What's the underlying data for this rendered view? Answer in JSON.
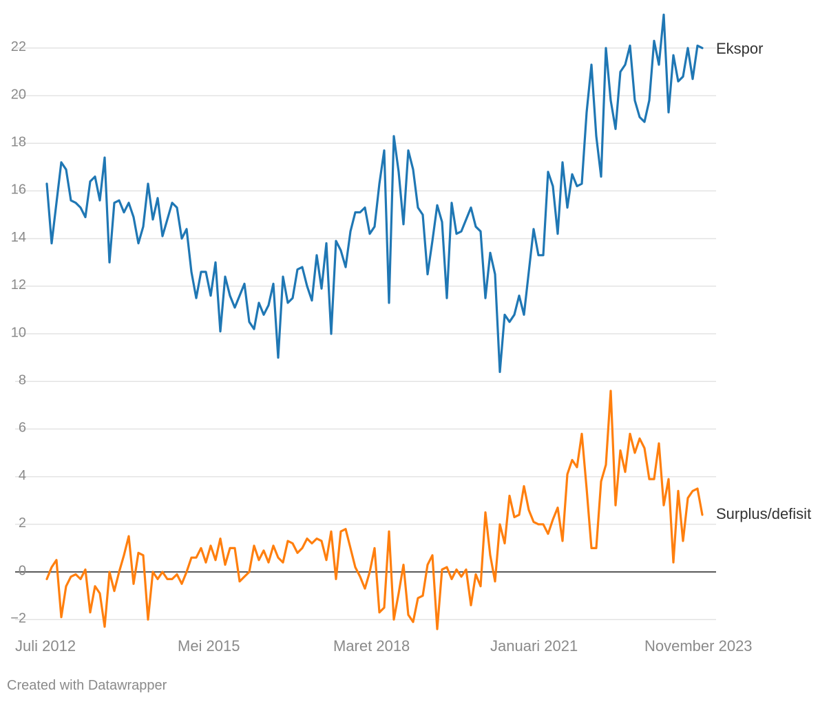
{
  "chart_data": {
    "type": "line",
    "title": "",
    "xlabel": "",
    "ylabel": "",
    "ylim": [
      -2,
      23.5
    ],
    "y_ticks": [
      -2,
      0,
      2,
      4,
      6,
      8,
      10,
      12,
      14,
      16,
      18,
      20,
      22
    ],
    "x_ticks": [
      "Juli 2012",
      "Mei 2015",
      "Maret 2018",
      "Januari 2021",
      "November 2023"
    ],
    "grid": true,
    "legend": "inline-right",
    "series": [
      {
        "name": "Ekspor",
        "color": "#1f77b4",
        "values": [
          16.3,
          13.8,
          15.5,
          17.2,
          16.9,
          15.6,
          15.5,
          15.3,
          14.9,
          16.4,
          16.6,
          15.6,
          17.4,
          13.0,
          15.5,
          15.6,
          15.1,
          15.5,
          14.9,
          13.8,
          14.5,
          16.3,
          14.8,
          15.7,
          14.1,
          14.8,
          15.5,
          15.3,
          14.0,
          14.4,
          12.6,
          11.5,
          12.6,
          12.6,
          11.6,
          13.0,
          10.1,
          12.4,
          11.6,
          11.1,
          11.6,
          12.1,
          10.5,
          10.2,
          11.3,
          10.8,
          11.2,
          12.1,
          9.0,
          12.4,
          11.3,
          11.5,
          12.7,
          12.8,
          12.0,
          11.4,
          13.3,
          11.9,
          13.8,
          10.0,
          13.9,
          13.5,
          12.8,
          14.3,
          15.1,
          15.1,
          15.3,
          14.2,
          14.5,
          16.3,
          17.7,
          11.3,
          18.3,
          16.8,
          14.6,
          17.7,
          16.9,
          15.3,
          15.0,
          12.5,
          13.9,
          15.4,
          14.7,
          11.5,
          15.5,
          14.2,
          14.3,
          14.8,
          15.3,
          14.5,
          14.3,
          11.5,
          13.4,
          12.5,
          8.4,
          10.8,
          10.5,
          10.8,
          11.6,
          10.8,
          12.6,
          14.4,
          13.3,
          13.3,
          16.8,
          16.2,
          14.2,
          17.2,
          15.3,
          16.7,
          16.2,
          16.3,
          19.3,
          21.3,
          18.3,
          16.6,
          22.0,
          19.8,
          18.6,
          21.0,
          21.3,
          22.1,
          19.8,
          19.1,
          18.9,
          19.8,
          22.3,
          21.3,
          23.4,
          19.3,
          21.7,
          20.6,
          20.8,
          22.0,
          20.7,
          22.1,
          22.0
        ]
      },
      {
        "name": "Surplus/defisit",
        "color": "#ff7f0e",
        "values": [
          -0.3,
          0.2,
          0.5,
          -1.9,
          -0.6,
          -0.2,
          -0.1,
          -0.3,
          0.1,
          -1.7,
          -0.6,
          -0.9,
          -2.3,
          0.0,
          -0.8,
          0.0,
          0.7,
          1.5,
          -0.5,
          0.8,
          0.7,
          -2.0,
          0.0,
          -0.3,
          0.0,
          -0.3,
          -0.3,
          -0.1,
          -0.5,
          0.0,
          0.6,
          0.6,
          1.0,
          0.4,
          1.1,
          0.5,
          1.4,
          0.3,
          1.0,
          1.0,
          -0.4,
          -0.2,
          0.0,
          1.1,
          0.5,
          0.9,
          0.4,
          1.1,
          0.6,
          0.4,
          1.3,
          1.2,
          0.8,
          1.0,
          1.4,
          1.2,
          1.4,
          1.3,
          0.5,
          1.7,
          -0.3,
          1.7,
          1.8,
          1.0,
          0.2,
          -0.2,
          -0.7,
          0.0,
          1.0,
          -1.7,
          -1.5,
          1.7,
          -2.0,
          -0.9,
          0.3,
          -1.8,
          -2.1,
          -1.1,
          -1.0,
          0.3,
          0.7,
          -2.4,
          0.1,
          0.2,
          -0.3,
          0.1,
          -0.2,
          0.1,
          -1.4,
          -0.1,
          -0.6,
          2.5,
          0.7,
          -0.4,
          2.0,
          1.2,
          3.2,
          2.3,
          2.4,
          3.6,
          2.6,
          2.1,
          2.0,
          2.0,
          1.6,
          2.2,
          2.7,
          1.3,
          4.1,
          4.7,
          4.4,
          5.8,
          3.5,
          1.0,
          1.0,
          3.8,
          4.5,
          7.6,
          2.8,
          5.1,
          4.2,
          5.8,
          5.0,
          5.6,
          5.2,
          3.9,
          3.9,
          5.4,
          2.8,
          3.9,
          0.4,
          3.4,
          1.3,
          3.1,
          3.4,
          3.5,
          2.4
        ]
      }
    ]
  },
  "footer": {
    "credit": "Created with Datawrapper"
  }
}
